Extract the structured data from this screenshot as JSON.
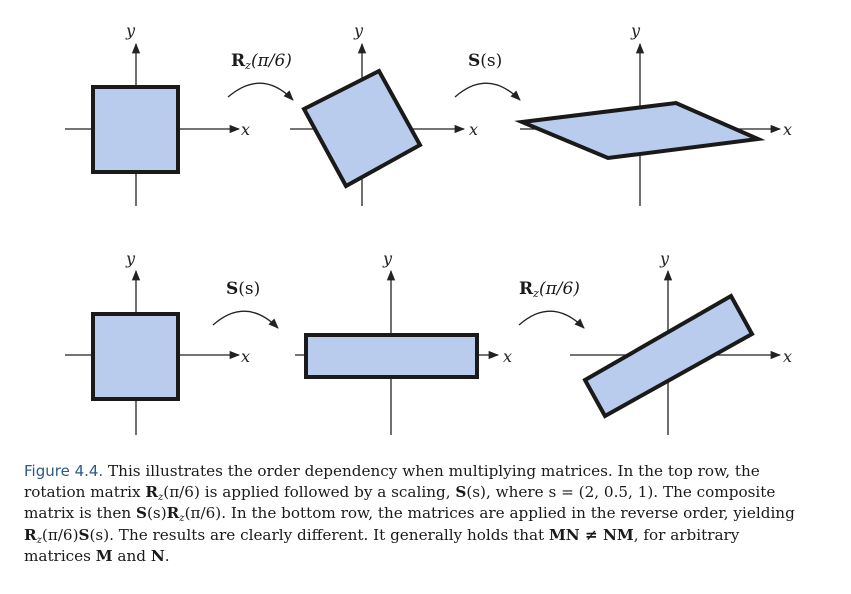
{
  "axis_labels": {
    "x": "x",
    "y": "y"
  },
  "operators": {
    "rotation": {
      "symbol": "R",
      "subscript": "z",
      "argument": "(π/6)"
    },
    "scaling": {
      "symbol": "S",
      "argument": "(s)"
    }
  },
  "caption": {
    "label": "Figure 4.4.",
    "line1_text": " This illustrates the order dependency when multiplying matrices. In the top row, the",
    "line2_a": "rotation matrix ",
    "line2_b": " is applied followed by a scaling, ",
    "line2_c": ", where s = (2, 0.5, 1). The composite",
    "line3_a": "matrix is then ",
    "line3_b": ". In the bottom row, the matrices are applied in the reverse order, yielding",
    "line4_b": ". The results are clearly different. It generally holds that ",
    "line4_c": ", for arbitrary",
    "line5_a": "matrices ",
    "line5_b": " and ",
    "line5_c": ".",
    "math_R": "R",
    "math_z": "z",
    "math_arg": "(π/6)",
    "math_S": "S",
    "math_s": "(s)",
    "math_MN": "MN ≠ NM",
    "math_M": "M",
    "math_N": "N"
  }
}
